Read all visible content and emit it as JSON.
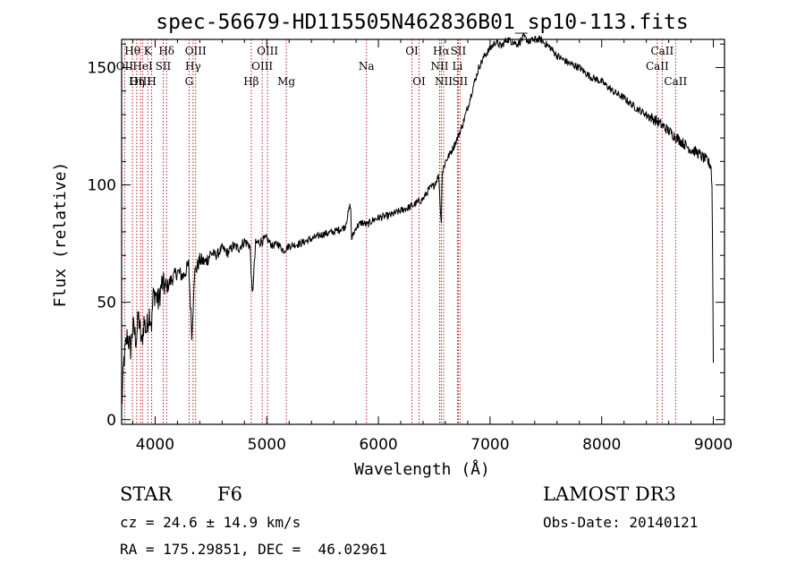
{
  "chart_data": {
    "type": "line",
    "title": "spec-56679-HD115505N462836B01_sp10-113.fits",
    "xlabel": "Wavelength (Å)",
    "ylabel": "Flux (relative)",
    "xlim": [
      3700,
      9100
    ],
    "ylim": [
      -2,
      162
    ],
    "x_ticks": [
      4000,
      5000,
      6000,
      7000,
      8000,
      9000
    ],
    "y_ticks": [
      0,
      50,
      100,
      150
    ],
    "series": [
      {
        "name": "flux",
        "x": [
          3700,
          3720,
          3750,
          3780,
          3800,
          3830,
          3850,
          3880,
          3900,
          3920,
          3950,
          3970,
          3980,
          4000,
          4030,
          4060,
          4100,
          4150,
          4200,
          4250,
          4300,
          4330,
          4350,
          4400,
          4450,
          4500,
          4550,
          4600,
          4650,
          4700,
          4750,
          4800,
          4850,
          4870,
          4900,
          4950,
          5000,
          5050,
          5100,
          5150,
          5200,
          5300,
          5400,
          5500,
          5600,
          5700,
          5750,
          5760,
          5800,
          5850,
          5900,
          5950,
          6000,
          6100,
          6200,
          6300,
          6400,
          6450,
          6500,
          6540,
          6563,
          6570,
          6600,
          6650,
          6700,
          6750,
          6800,
          6850,
          6900,
          6950,
          7000,
          7050,
          7100,
          7150,
          7200,
          7250,
          7300,
          7350,
          7400,
          7450,
          7500,
          7550,
          7600,
          7700,
          7800,
          7900,
          8000,
          8100,
          8200,
          8300,
          8400,
          8500,
          8550,
          8600,
          8650,
          8700,
          8750,
          8800,
          8850,
          8900,
          8950,
          8980,
          8990,
          9000
        ],
        "y": [
          5,
          25,
          36,
          30,
          40,
          34,
          44,
          32,
          42,
          38,
          46,
          40,
          52,
          54,
          50,
          58,
          56,
          60,
          63,
          61,
          66,
          35,
          62,
          68,
          67,
          71,
          70,
          73,
          71,
          74,
          73,
          76,
          74,
          52,
          75,
          76,
          77,
          74,
          75,
          72,
          74,
          75,
          77,
          79,
          80,
          82,
          92,
          77,
          82,
          84,
          83,
          85,
          86,
          87,
          89,
          91,
          94,
          98,
          100,
          104,
          82,
          105,
          110,
          114,
          119,
          125,
          133,
          142,
          150,
          155,
          158,
          161,
          159,
          162,
          161,
          160,
          163,
          161,
          162,
          162,
          160,
          158,
          155,
          152,
          150,
          146,
          144,
          140,
          137,
          133,
          130,
          127,
          125,
          123,
          121,
          119,
          117,
          115,
          114,
          112,
          110,
          108,
          96,
          25
        ]
      }
    ],
    "line_markers": [
      {
        "label": "Hθ",
        "x": 3797,
        "row": 0
      },
      {
        "label": "OII",
        "x": 3727,
        "row": 1
      },
      {
        "label": "OIII",
        "x": 3869,
        "row": 2
      },
      {
        "label": "K",
        "x": 3934,
        "row": 0
      },
      {
        "label": "HeI",
        "x": 3889,
        "row": 1
      },
      {
        "label": "Hη",
        "x": 3835,
        "row": 2
      },
      {
        "label": "SII",
        "x": 4072,
        "row": 1
      },
      {
        "label": "H",
        "x": 3969,
        "row": 2
      },
      {
        "label": "Hδ",
        "x": 4102,
        "row": 0
      },
      {
        "label": "OIII",
        "x": 4363,
        "row": 0
      },
      {
        "label": "Hγ",
        "x": 4340,
        "row": 1
      },
      {
        "label": "G",
        "x": 4304,
        "row": 2
      },
      {
        "label": "Hβ",
        "x": 4861,
        "row": 2
      },
      {
        "label": "OIII",
        "x": 5007,
        "row": 0
      },
      {
        "label": "OIII",
        "x": 4959,
        "row": 1
      },
      {
        "label": "Mg",
        "x": 5175,
        "row": 2
      },
      {
        "label": "Na",
        "x": 5893,
        "row": 1
      },
      {
        "label": "OI",
        "x": 6300,
        "row": 0
      },
      {
        "label": "OI",
        "x": 6364,
        "row": 2
      },
      {
        "label": "Hα",
        "x": 6563,
        "row": 0
      },
      {
        "label": "SII",
        "x": 6716,
        "row": 0
      },
      {
        "label": "NII",
        "x": 6548,
        "row": 1
      },
      {
        "label": "Li",
        "x": 6708,
        "row": 1
      },
      {
        "label": "NII",
        "x": 6584,
        "row": 2
      },
      {
        "label": "SII",
        "x": 6731,
        "row": 2
      },
      {
        "label": "CaII",
        "x": 8542,
        "row": 0
      },
      {
        "label": "CaII",
        "x": 8498,
        "row": 1
      },
      {
        "label": "CaII",
        "x": 8662,
        "row": 2
      }
    ]
  },
  "info": {
    "object_type": "STAR",
    "subclass": "F6",
    "survey": "LAMOST DR3",
    "redshift": "cz = 24.6 ± 14.9 km/s",
    "obs_date": "Obs-Date: 20140121",
    "coords": "RA = 175.29851, DEC =  46.02961"
  }
}
